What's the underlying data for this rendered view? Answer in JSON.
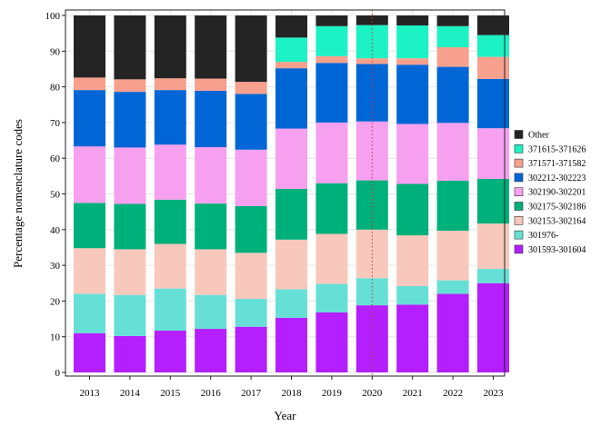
{
  "chart_data": {
    "type": "bar",
    "stacked": true,
    "title": "",
    "xlabel": "Year",
    "ylabel": "Percentage nomenclature codes",
    "ylim": [
      0,
      100
    ],
    "yticks": [
      0,
      10,
      20,
      30,
      40,
      50,
      60,
      70,
      80,
      90,
      100
    ],
    "grid": true,
    "legend_position": "right",
    "reference_line_at": "2020",
    "categories": [
      "2013",
      "2014",
      "2015",
      "2016",
      "2017",
      "2018",
      "2019",
      "2020",
      "2021",
      "2022",
      "2023"
    ],
    "series": [
      {
        "name": "301593-301604",
        "color": "#b31fff",
        "values": [
          11.0,
          10.2,
          11.7,
          12.2,
          12.8,
          15.3,
          16.8,
          18.8,
          19.0,
          22.0,
          25.0
        ]
      },
      {
        "name": "301976-",
        "color": "#66e0d6",
        "values": [
          11.0,
          11.5,
          11.8,
          9.5,
          7.8,
          8.0,
          8.0,
          7.6,
          5.2,
          3.8,
          4.0
        ]
      },
      {
        "name": "302153-302164",
        "color": "#f8c8bc",
        "values": [
          12.8,
          12.8,
          12.5,
          12.8,
          12.9,
          13.9,
          14.0,
          13.6,
          14.2,
          13.9,
          12.7
        ]
      },
      {
        "name": "302175-302186",
        "color": "#00b07a",
        "values": [
          12.7,
          12.7,
          12.4,
          12.8,
          13.1,
          14.2,
          14.2,
          13.8,
          14.4,
          14.0,
          12.5
        ]
      },
      {
        "name": "302190-302201",
        "color": "#f7a0f0",
        "values": [
          15.8,
          15.8,
          15.4,
          15.8,
          15.8,
          16.9,
          17.0,
          16.5,
          16.8,
          16.2,
          14.2
        ]
      },
      {
        "name": "302212-302223",
        "color": "#0066d6",
        "values": [
          15.8,
          15.6,
          15.3,
          15.8,
          15.6,
          16.9,
          16.7,
          16.1,
          16.6,
          15.7,
          13.8
        ]
      },
      {
        "name": "371571-371582",
        "color": "#f7a08e",
        "values": [
          3.5,
          3.5,
          3.3,
          3.4,
          3.4,
          1.8,
          1.9,
          1.6,
          1.8,
          5.5,
          6.2
        ]
      },
      {
        "name": "371615-371626",
        "color": "#1cf2c4",
        "values": [
          0,
          0,
          0,
          0,
          0,
          6.8,
          8.4,
          9.3,
          9.2,
          5.9,
          6.1
        ]
      },
      {
        "name": "Other",
        "color": "#242424",
        "values": [
          17.4,
          17.9,
          17.6,
          17.7,
          18.6,
          6.2,
          3.0,
          2.7,
          2.8,
          3.0,
          5.5
        ]
      }
    ]
  }
}
